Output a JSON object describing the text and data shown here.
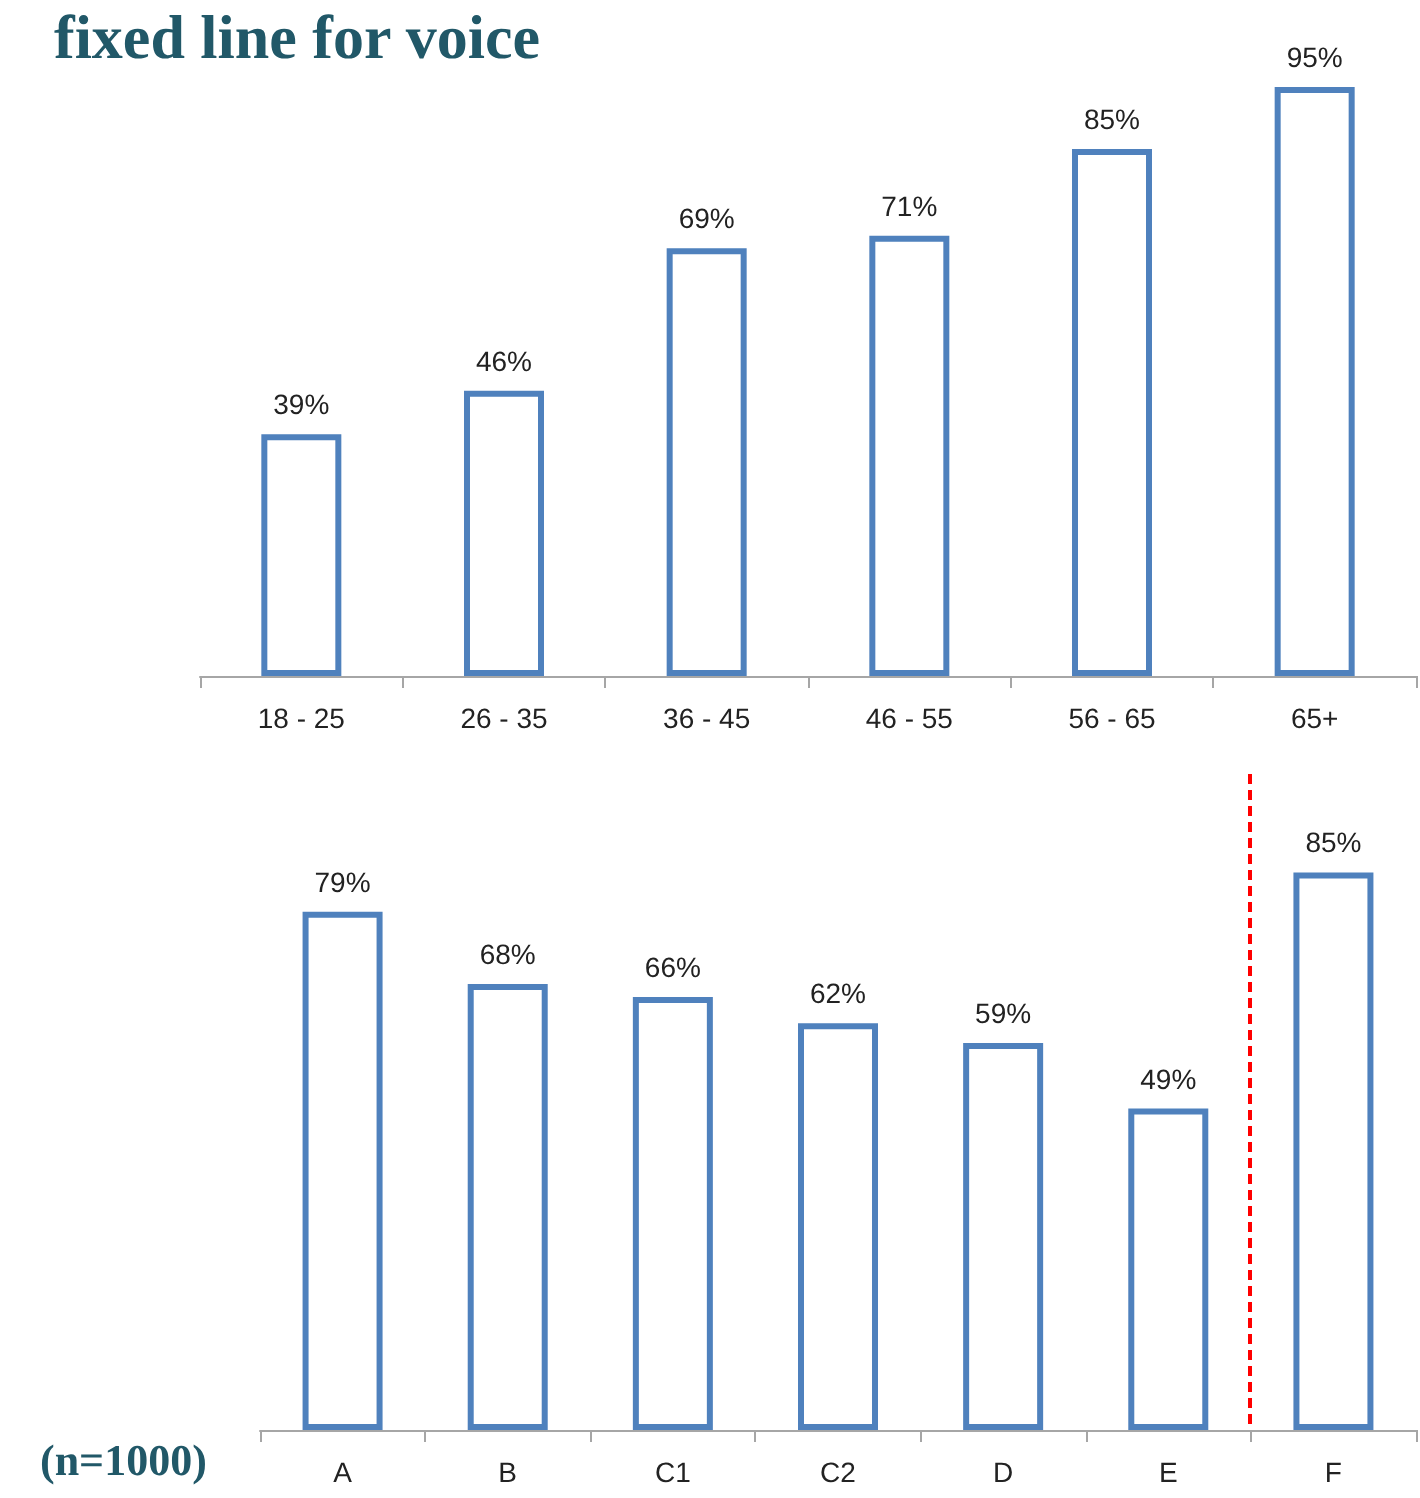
{
  "chart_data": [
    {
      "type": "bar",
      "title": "fixed line for voice",
      "categories": [
        "18 - 25",
        "26 - 35",
        "36 - 45",
        "46 - 55",
        "56 - 65",
        "65+"
      ],
      "values": [
        39,
        46,
        69,
        71,
        85,
        95
      ],
      "value_labels": [
        "39%",
        "46%",
        "69%",
        "71%",
        "85%",
        "95%"
      ],
      "color": "#4f81bd"
    },
    {
      "type": "bar",
      "categories": [
        "A",
        "B",
        "C1",
        "C2",
        "D",
        "E",
        "F"
      ],
      "values": [
        79,
        68,
        66,
        62,
        59,
        49,
        85
      ],
      "value_labels": [
        "79%",
        "68%",
        "66%",
        "62%",
        "59%",
        "49%",
        "85%"
      ],
      "color": "#4f81bd",
      "annotations": [
        "(n=1000)"
      ]
    }
  ]
}
